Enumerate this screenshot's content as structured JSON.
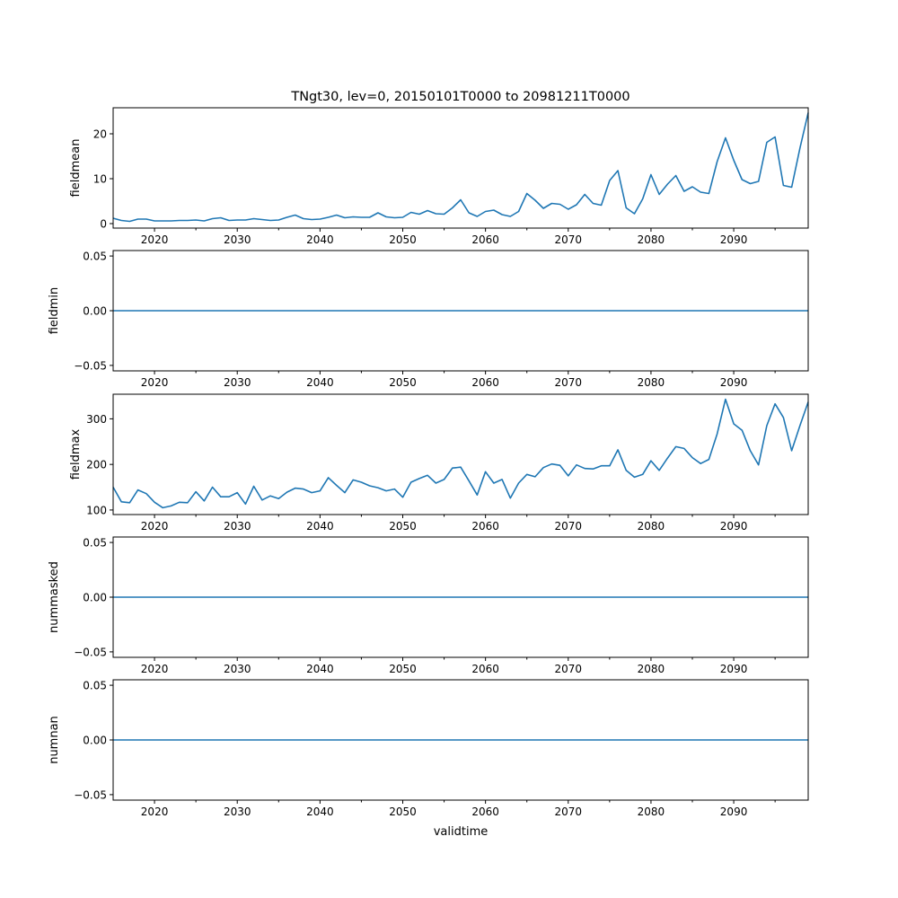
{
  "chart_data": {
    "type": "line",
    "title": "TNgt30, lev=0, 20150101T0000 to 20981211T0000",
    "xlabel": "validtime",
    "xlim": [
      2015,
      2099
    ],
    "x_ticks": [
      2020,
      2030,
      2040,
      2050,
      2060,
      2070,
      2080,
      2090
    ],
    "x_minor_ticks": [
      2025,
      2035,
      2045,
      2055,
      2065,
      2075,
      2085,
      2095
    ],
    "line_color": "#1f77b4",
    "x": [
      2015,
      2016,
      2017,
      2018,
      2019,
      2020,
      2021,
      2022,
      2023,
      2024,
      2025,
      2026,
      2027,
      2028,
      2029,
      2030,
      2031,
      2032,
      2033,
      2034,
      2035,
      2036,
      2037,
      2038,
      2039,
      2040,
      2041,
      2042,
      2043,
      2044,
      2045,
      2046,
      2047,
      2048,
      2049,
      2050,
      2051,
      2052,
      2053,
      2054,
      2055,
      2056,
      2057,
      2058,
      2059,
      2060,
      2061,
      2062,
      2063,
      2064,
      2065,
      2066,
      2067,
      2068,
      2069,
      2070,
      2071,
      2072,
      2073,
      2074,
      2075,
      2076,
      2077,
      2078,
      2079,
      2080,
      2081,
      2082,
      2083,
      2084,
      2085,
      2086,
      2087,
      2088,
      2089,
      2090,
      2091,
      2092,
      2093,
      2094,
      2095,
      2096,
      2097,
      2098,
      2099
    ],
    "panels": [
      {
        "ylabel": "fieldmean",
        "ylim": [
          -1,
          25.8
        ],
        "y_ticks": [
          0,
          10,
          20
        ],
        "y_tick_labels": [
          "0",
          "10",
          "20"
        ],
        "values": [
          1.2,
          0.7,
          0.5,
          1.0,
          1.0,
          0.6,
          0.6,
          0.6,
          0.7,
          0.7,
          0.8,
          0.6,
          1.1,
          1.3,
          0.7,
          0.8,
          0.8,
          1.1,
          0.9,
          0.7,
          0.8,
          1.4,
          1.9,
          1.1,
          0.9,
          1.0,
          1.4,
          1.9,
          1.3,
          1.5,
          1.4,
          1.4,
          2.4,
          1.5,
          1.3,
          1.4,
          2.5,
          2.1,
          2.9,
          2.2,
          2.1,
          3.5,
          5.3,
          2.4,
          1.6,
          2.7,
          3.0,
          2.0,
          1.6,
          2.7,
          6.7,
          5.2,
          3.4,
          4.5,
          4.3,
          3.2,
          4.2,
          6.5,
          4.5,
          4.1,
          9.6,
          11.8,
          3.5,
          2.2,
          5.5,
          10.9,
          6.5,
          8.8,
          10.7,
          7.2,
          8.2,
          7.0,
          6.7,
          13.8,
          19.1,
          14.1,
          9.8,
          8.9,
          9.4,
          18.1,
          19.3,
          8.5,
          8.1,
          16.8,
          24.7
        ]
      },
      {
        "ylabel": "fieldmin",
        "ylim": [
          -0.055,
          0.055
        ],
        "y_ticks": [
          -0.05,
          0,
          0.05
        ],
        "y_tick_labels": [
          "−0.05",
          "0.00",
          "0.05"
        ],
        "constant": 0
      },
      {
        "ylabel": "fieldmax",
        "ylim": [
          90,
          354
        ],
        "y_ticks": [
          100,
          200,
          300
        ],
        "y_tick_labels": [
          "100",
          "200",
          "300"
        ],
        "values": [
          150,
          118,
          116,
          144,
          136,
          117,
          105,
          109,
          117,
          116,
          140,
          120,
          150,
          129,
          129,
          138,
          113,
          152,
          122,
          131,
          125,
          139,
          148,
          146,
          138,
          142,
          171,
          154,
          138,
          166,
          161,
          153,
          149,
          142,
          146,
          128,
          161,
          169,
          176,
          159,
          167,
          192,
          194,
          164,
          133,
          184,
          159,
          167,
          126,
          159,
          178,
          173,
          193,
          201,
          198,
          175,
          199,
          191,
          190,
          197,
          197,
          232,
          187,
          172,
          178,
          208,
          187,
          214,
          239,
          235,
          215,
          202,
          211,
          267,
          343,
          289,
          275,
          230,
          199,
          285,
          333,
          303,
          230,
          285,
          337
        ]
      },
      {
        "ylabel": "nummasked",
        "ylim": [
          -0.055,
          0.055
        ],
        "y_ticks": [
          -0.05,
          0,
          0.05
        ],
        "y_tick_labels": [
          "−0.05",
          "0.00",
          "0.05"
        ],
        "constant": 0
      },
      {
        "ylabel": "numnan",
        "ylim": [
          -0.055,
          0.055
        ],
        "y_ticks": [
          -0.05,
          0,
          0.05
        ],
        "y_tick_labels": [
          "−0.05",
          "0.00",
          "0.05"
        ],
        "constant": 0
      }
    ]
  }
}
